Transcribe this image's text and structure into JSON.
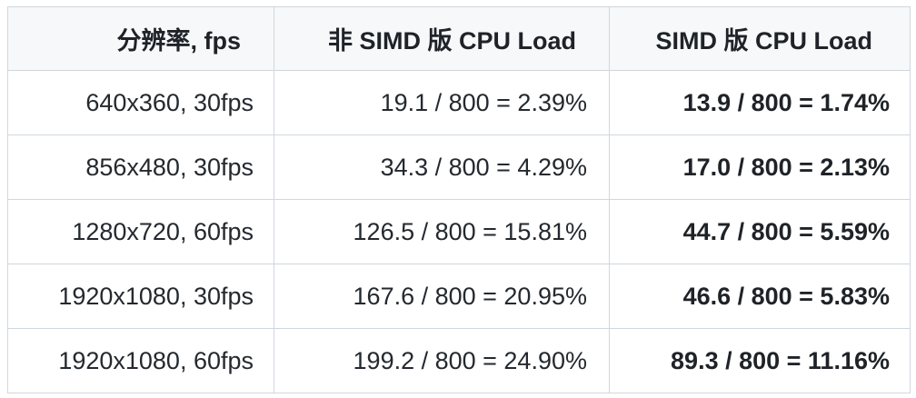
{
  "table": {
    "headers": [
      "分辨率, fps",
      "非 SIMD 版 CPU Load",
      "SIMD 版 CPU Load"
    ],
    "rows": [
      [
        "640x360, 30fps",
        "19.1 / 800 = 2.39%",
        "13.9 / 800 = 1.74%"
      ],
      [
        "856x480, 30fps",
        "34.3 / 800 = 4.29%",
        "17.0 / 800 = 2.13%"
      ],
      [
        "1280x720, 60fps",
        "126.5 / 800 = 15.81%",
        "44.7 / 800 = 5.59%"
      ],
      [
        "1920x1080, 30fps",
        "167.6 / 800 = 20.95%",
        "46.6 / 800 = 5.83%"
      ],
      [
        "1920x1080, 60fps",
        "199.2 / 800 = 24.90%",
        "89.3 / 800 = 11.16%"
      ]
    ]
  }
}
